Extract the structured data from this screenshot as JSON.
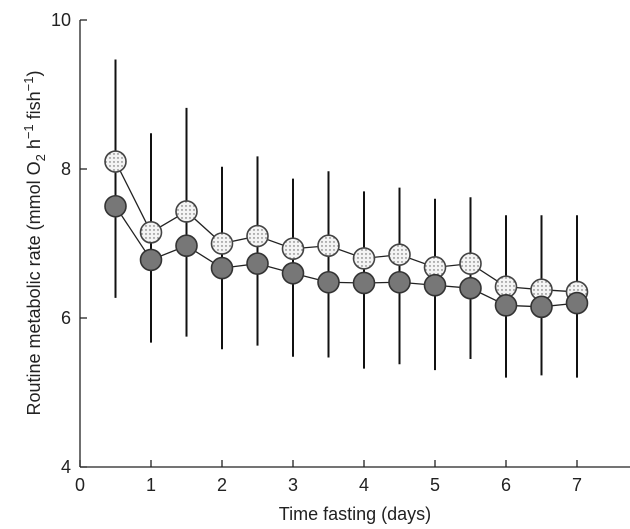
{
  "chart_data": {
    "type": "scatter",
    "xlabel": "Time fasting (days)",
    "ylabel_parts": [
      "Routine metabolic rate (mmol O",
      "2",
      " h",
      "−1",
      " fish",
      "−1",
      ")"
    ],
    "xlim": [
      0,
      7.5
    ],
    "ylim": [
      4,
      10
    ],
    "x_ticks": [
      0,
      1,
      2,
      3,
      4,
      5,
      6,
      7
    ],
    "y_ticks": [
      4,
      6,
      8,
      10
    ],
    "x_tick_labels": [
      "0",
      "1",
      "2",
      "3",
      "4",
      "5",
      "6",
      "7"
    ],
    "y_tick_labels": [
      "4",
      "6",
      "8",
      "10"
    ],
    "grid": false,
    "x": [
      0.5,
      1,
      1.5,
      2,
      2.5,
      3,
      3.5,
      4,
      4.5,
      5,
      5.5,
      6,
      6.5,
      7
    ],
    "series": [
      {
        "marker": "dotted-open-circle",
        "color": "#f2f2f2",
        "values": [
          8.1,
          7.15,
          7.43,
          7.0,
          7.1,
          6.93,
          6.97,
          6.8,
          6.85,
          6.68,
          6.73,
          6.42,
          6.38,
          6.35
        ]
      },
      {
        "marker": "filled-circle",
        "color": "#777777",
        "values": [
          7.5,
          6.78,
          6.97,
          6.67,
          6.73,
          6.6,
          6.48,
          6.47,
          6.48,
          6.44,
          6.4,
          6.17,
          6.15,
          6.2
        ]
      }
    ],
    "error_bars": {
      "low": [
        6.27,
        5.67,
        5.75,
        5.58,
        5.63,
        5.48,
        5.47,
        5.32,
        5.38,
        5.3,
        5.45,
        5.2,
        5.23,
        5.2
      ],
      "high": [
        9.47,
        8.48,
        8.82,
        8.03,
        8.17,
        7.87,
        7.97,
        7.7,
        7.75,
        7.6,
        7.62,
        7.38,
        7.38,
        7.38
      ]
    }
  }
}
